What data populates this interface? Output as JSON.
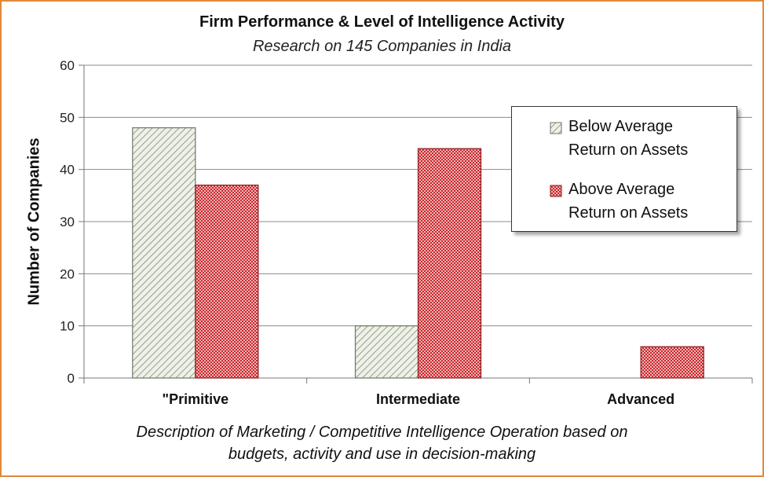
{
  "chart_data": {
    "type": "bar",
    "title": "Firm Performance & Level of Intelligence Activity",
    "subtitle": "Research on 145 Companies in India",
    "ylabel": "Number of Companies",
    "xlabel_lines": [
      "Description of Marketing / Competitive Intelligence Operation based on",
      "budgets, activity and use in decision-making"
    ],
    "categories": [
      "\"Primitive",
      "Intermediate",
      "Advanced"
    ],
    "series": [
      {
        "name": "Below Average Return on Assets",
        "legend_lines": [
          "Below Average",
          "Return on Assets"
        ],
        "values": [
          48,
          10,
          0
        ],
        "color": "#e6ebe0",
        "pattern": "diagonal-hatch"
      },
      {
        "name": "Above Average Return on Assets",
        "legend_lines": [
          "Above Average",
          "Return on Assets"
        ],
        "values": [
          37,
          44,
          6
        ],
        "color": "#c8262c",
        "pattern": "checker"
      }
    ],
    "ylim": [
      0,
      60
    ],
    "yticks": [
      0,
      10,
      20,
      30,
      40,
      50,
      60
    ],
    "grid": true,
    "legend_position": "right"
  },
  "frame_color": "#e08a3c"
}
